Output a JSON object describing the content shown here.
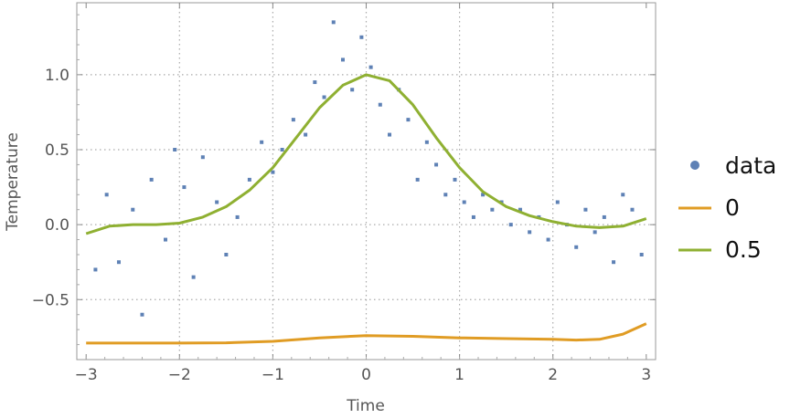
{
  "chart_data": {
    "type": "scatter",
    "xlabel": "Time",
    "ylabel": "Temperature",
    "xlim": [
      -3.1,
      3.1
    ],
    "ylim": [
      -0.9,
      1.48
    ],
    "xticks": [
      -3,
      -2,
      -1,
      0,
      1,
      2,
      3
    ],
    "xtick_labels": [
      "−3",
      "−2",
      "−1",
      "0",
      "1",
      "2",
      "3"
    ],
    "yticks": [
      -0.5,
      0.0,
      0.5,
      1.0
    ],
    "ytick_labels": [
      "−0.5",
      "0.0",
      "0.5",
      "1.0"
    ],
    "grid": true,
    "legend_position": "right",
    "legend": [
      "data",
      "0",
      "0.5"
    ],
    "series": [
      {
        "name": "data",
        "kind": "points",
        "color": "#5E81B5",
        "x": [
          -2.9,
          -2.78,
          -2.65,
          -2.5,
          -2.4,
          -2.3,
          -2.15,
          -2.05,
          -1.95,
          -1.85,
          -1.75,
          -1.6,
          -1.5,
          -1.38,
          -1.25,
          -1.12,
          -1.0,
          -0.9,
          -0.78,
          -0.65,
          -0.55,
          -0.45,
          -0.35,
          -0.25,
          -0.15,
          -0.05,
          0.05,
          0.15,
          0.25,
          0.35,
          0.45,
          0.55,
          0.65,
          0.75,
          0.85,
          0.95,
          1.05,
          1.15,
          1.25,
          1.35,
          1.45,
          1.55,
          1.65,
          1.75,
          1.85,
          1.95,
          2.05,
          2.15,
          2.25,
          2.35,
          2.45,
          2.55,
          2.65,
          2.75,
          2.85,
          2.95
        ],
        "y": [
          -0.3,
          0.2,
          -0.25,
          0.1,
          -0.6,
          0.3,
          -0.1,
          0.5,
          0.25,
          -0.35,
          0.45,
          0.15,
          -0.2,
          0.05,
          0.3,
          0.55,
          0.35,
          0.5,
          0.7,
          0.6,
          0.95,
          0.85,
          1.35,
          1.1,
          0.9,
          1.25,
          1.05,
          0.8,
          0.6,
          0.9,
          0.7,
          0.3,
          0.55,
          0.4,
          0.2,
          0.3,
          0.15,
          0.05,
          0.2,
          0.1,
          0.15,
          0.0,
          0.1,
          -0.05,
          0.05,
          -0.1,
          0.15,
          0.0,
          -0.15,
          0.1,
          -0.05,
          0.05,
          -0.25,
          0.2,
          0.1,
          -0.2
        ]
      },
      {
        "name": "0",
        "kind": "line",
        "color": "#E09C24",
        "x": [
          -3,
          -2.5,
          -2,
          -1.5,
          -1,
          -0.5,
          0,
          0.5,
          1,
          1.5,
          2,
          2.25,
          2.5,
          2.75,
          3
        ],
        "y": [
          -0.79,
          -0.79,
          -0.79,
          -0.788,
          -0.778,
          -0.755,
          -0.74,
          -0.745,
          -0.755,
          -0.76,
          -0.765,
          -0.77,
          -0.765,
          -0.73,
          -0.66
        ]
      },
      {
        "name": "0.5",
        "kind": "line",
        "color": "#8FB032",
        "x": [
          -3,
          -2.75,
          -2.5,
          -2.25,
          -2,
          -1.75,
          -1.5,
          -1.25,
          -1,
          -0.75,
          -0.5,
          -0.25,
          0,
          0.25,
          0.5,
          0.75,
          1,
          1.25,
          1.5,
          1.75,
          2,
          2.25,
          2.5,
          2.75,
          3
        ],
        "y": [
          -0.06,
          -0.01,
          0.0,
          0.0,
          0.01,
          0.05,
          0.12,
          0.23,
          0.38,
          0.58,
          0.78,
          0.93,
          1.0,
          0.96,
          0.8,
          0.58,
          0.38,
          0.22,
          0.12,
          0.06,
          0.02,
          -0.01,
          -0.02,
          -0.01,
          0.04
        ]
      }
    ]
  }
}
